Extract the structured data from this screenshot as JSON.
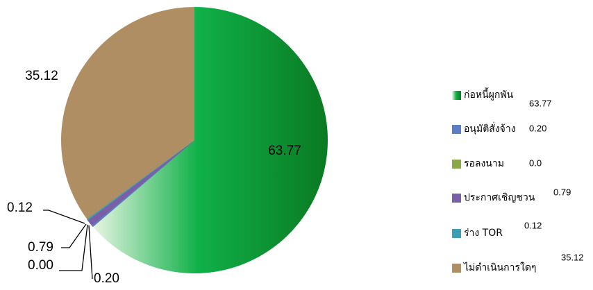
{
  "chart_data": {
    "type": "pie",
    "categories": [
      "ก่อหนี้ผูกพัน",
      "อนุมัติสั่งจ้าง",
      "รอลงนาม",
      "ประกาศเชิญชวน",
      "ร่าง TOR",
      "ไม่ดำเนินการใดๆ"
    ],
    "values": [
      63.77,
      0.2,
      0.0,
      0.79,
      0.12,
      35.12
    ],
    "value_labels": [
      "63.77",
      "0.20",
      "0.00",
      "0.79",
      "0.12",
      "35.12"
    ],
    "legend_value_labels": [
      "63.77",
      "0.20",
      "0.0",
      "0.79",
      "0.12",
      "35.12"
    ],
    "colors": [
      "#10a83c",
      "#5b7fc4",
      "#8aa84a",
      "#7a5ea8",
      "#3a9fb0",
      "#b08e64"
    ],
    "legend": "right"
  }
}
